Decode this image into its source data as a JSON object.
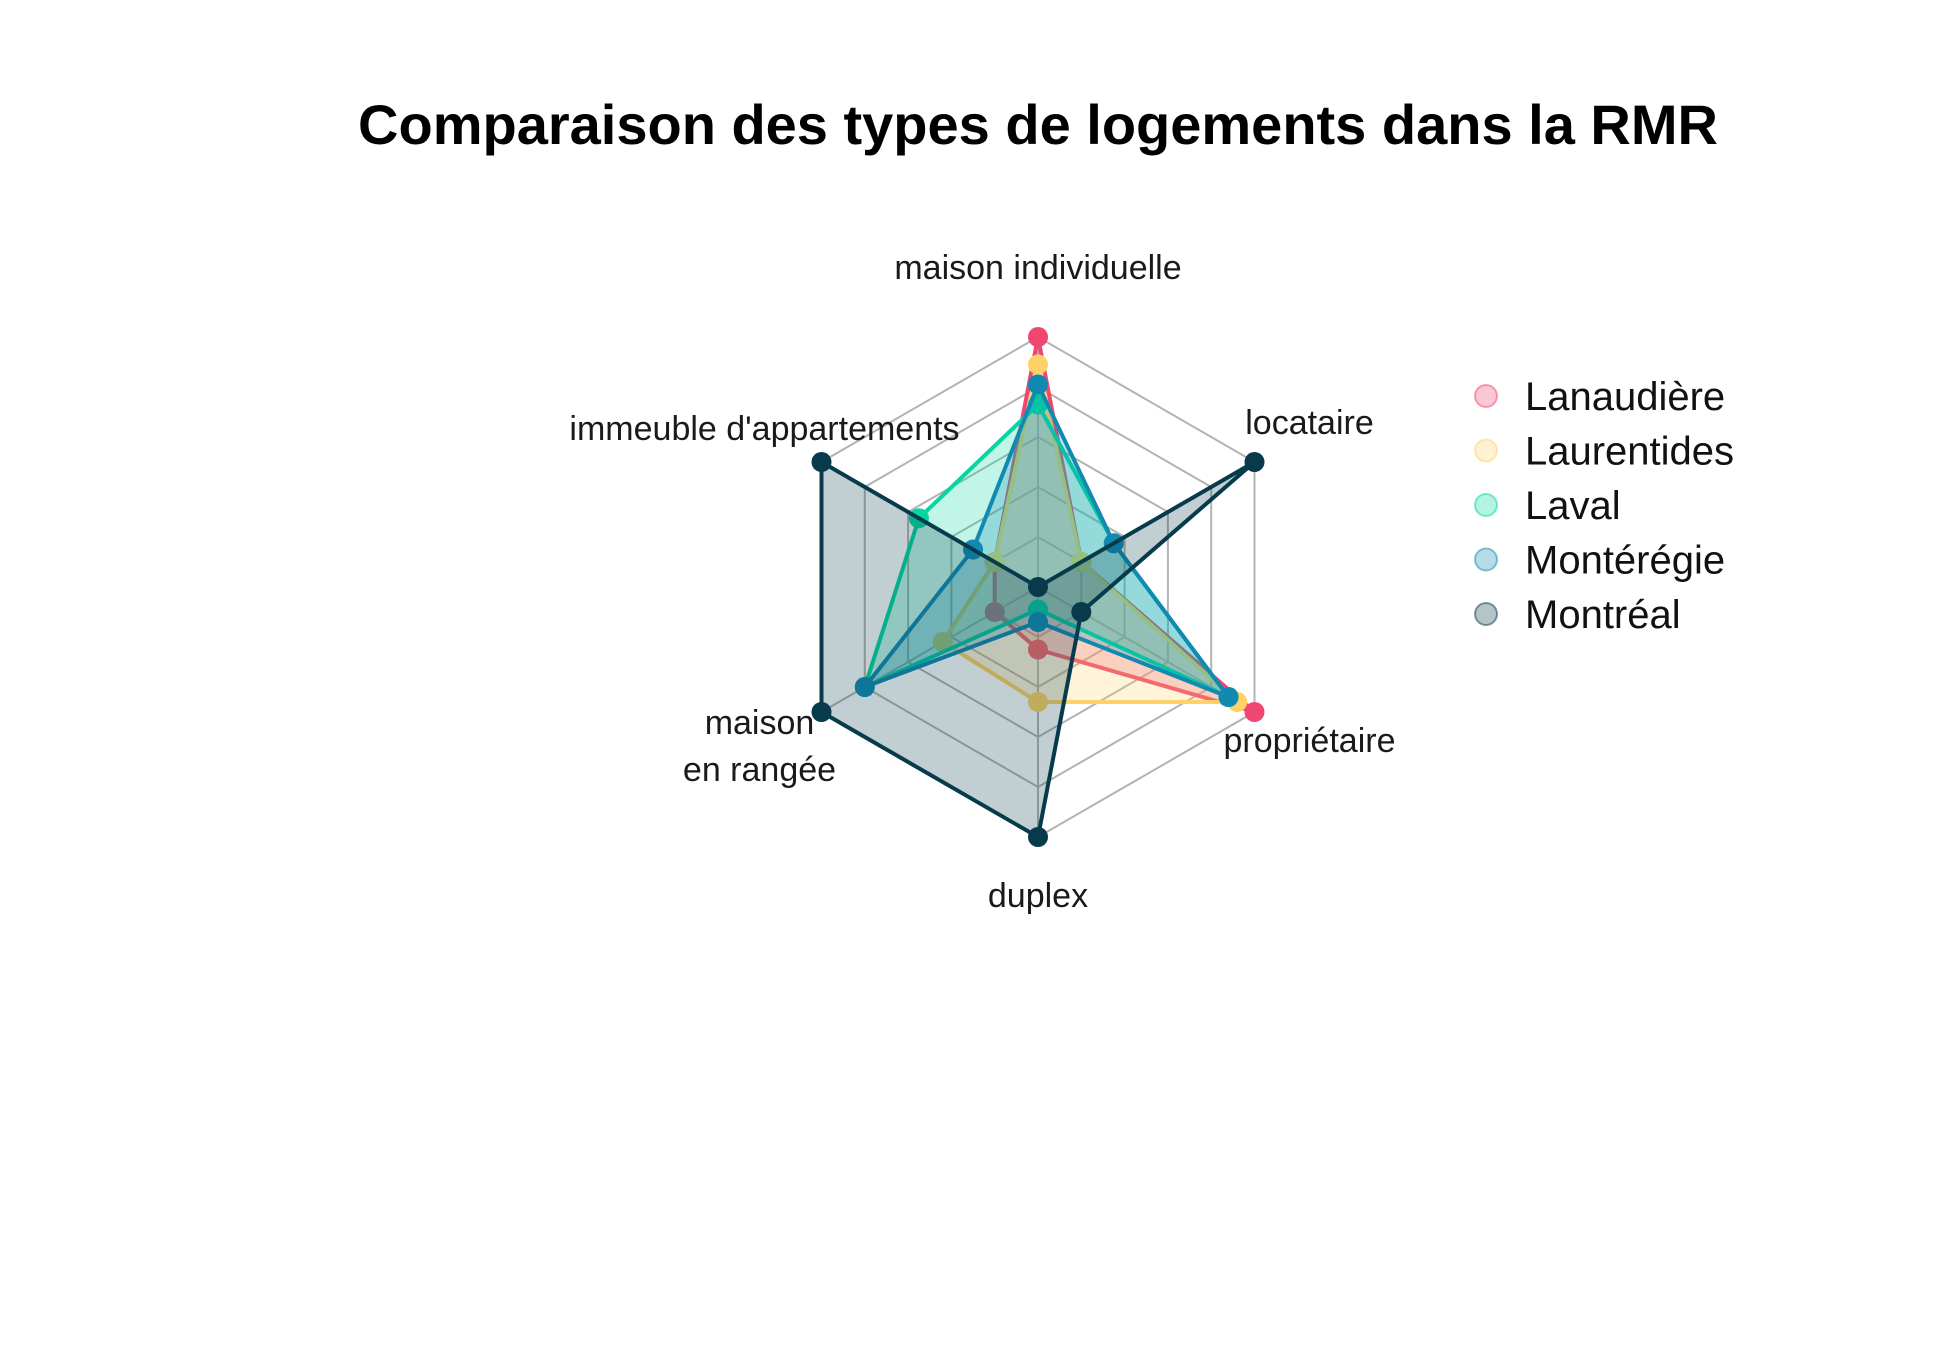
{
  "chart_data": {
    "type": "radar",
    "title": "Comparaison des types de logements dans la RMR",
    "axes": [
      {
        "key": "maison_individuelle",
        "lines": [
          "maison individuelle"
        ]
      },
      {
        "key": "locataire",
        "lines": [
          "locataire"
        ]
      },
      {
        "key": "proprietaire",
        "lines": [
          "propriétaire"
        ]
      },
      {
        "key": "duplex",
        "lines": [
          "duplex"
        ]
      },
      {
        "key": "maison_en_rangee",
        "lines": [
          "maison",
          "en rangée"
        ]
      },
      {
        "key": "immeuble",
        "lines": [
          "immeuble d'appartements"
        ]
      }
    ],
    "range": [
      0,
      1
    ],
    "grid_levels": 5,
    "grid": true,
    "legend_position": "right",
    "series": [
      {
        "name": "Lanaudière",
        "color": "#EF476F",
        "values": [
          1.0,
          0.2,
          1.0,
          0.25,
          0.2,
          0.2
        ]
      },
      {
        "name": "Laurentides",
        "color": "#FFD166",
        "values": [
          0.89,
          0.2,
          0.92,
          0.46,
          0.44,
          0.2
        ]
      },
      {
        "name": "Laval",
        "color": "#06D6A0",
        "values": [
          0.73,
          0.35,
          0.88,
          0.09,
          0.8,
          0.55
        ]
      },
      {
        "name": "Montérégie",
        "color": "#118AB2",
        "values": [
          0.81,
          0.35,
          0.88,
          0.14,
          0.8,
          0.3
        ]
      },
      {
        "name": "Montréal",
        "color": "#073B4C",
        "values": [
          0.0,
          1.0,
          0.2,
          1.0,
          1.0,
          1.0
        ]
      }
    ]
  }
}
